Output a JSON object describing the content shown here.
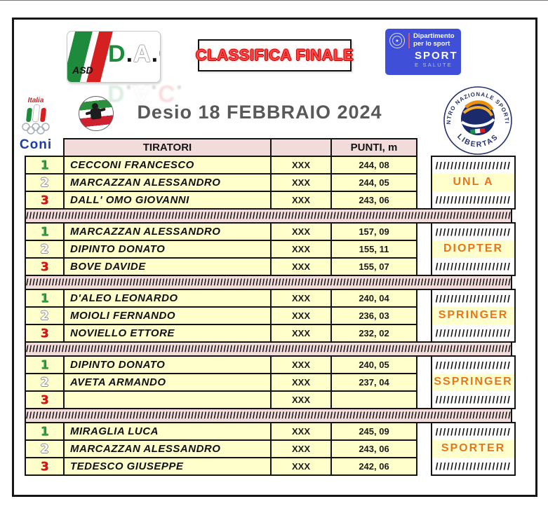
{
  "title": "Desio 18 FEBBRAIO 2024",
  "logos": {
    "dac": {
      "asd": "ASD",
      "d": "D",
      "a": "A",
      "c": "C",
      "dot": "."
    },
    "classifica_finale": "CLASSIFICA FINALE",
    "sport_salute": {
      "dept_line1": "Dipartimento",
      "dept_line2": "per lo sport",
      "main": "SPORT",
      "sub": "E SALUTE",
      "star": "★"
    },
    "coni": {
      "italia": "Italia",
      "name": "Coni"
    },
    "libertas": {
      "arc_top": "CENTRO NAZIONALE SPORTIVO",
      "arc_bottom": "LIBERTAS"
    }
  },
  "table": {
    "header": {
      "tiratori": "TIRATORI",
      "punti": "PUNTI, m"
    },
    "hatch_block": "////////////////////",
    "hatch_separator": "////////////////////////////////////////////////////////////////////////////////////////////////////////////////////////////////////////////////////////////",
    "groups": [
      {
        "category": "UNL A",
        "rows": [
          {
            "rank": "1",
            "name": "CECCONI FRANCESCO",
            "attempts": "XXX",
            "points": "244, 08"
          },
          {
            "rank": "2",
            "name": "MARCAZZAN ALESSANDRO",
            "attempts": "XXX",
            "points": "244, 05"
          },
          {
            "rank": "3",
            "name": "DALL' OMO GIOVANNI",
            "attempts": "XXX",
            "points": "243, 06"
          }
        ]
      },
      {
        "category": "DIOPTER",
        "rows": [
          {
            "rank": "1",
            "name": "MARCAZZAN ALESSANDRO",
            "attempts": "XXX",
            "points": "157, 09"
          },
          {
            "rank": "2",
            "name": "DIPINTO DONATO",
            "attempts": "XXX",
            "points": "155, 11"
          },
          {
            "rank": "3",
            "name": "BOVE DAVIDE",
            "attempts": "XXX",
            "points": "155, 07"
          }
        ]
      },
      {
        "category": "SPRINGER",
        "rows": [
          {
            "rank": "1",
            "name": "D'ALEO LEONARDO",
            "attempts": "XXX",
            "points": "240, 04"
          },
          {
            "rank": "2",
            "name": "MOIOLI FERNANDO",
            "attempts": "XXX",
            "points": "236, 03"
          },
          {
            "rank": "3",
            "name": "NOVIELLO ETTORE",
            "attempts": "XXX",
            "points": "232, 02"
          }
        ]
      },
      {
        "category": "SSPRINGER",
        "rows": [
          {
            "rank": "1",
            "name": "DIPINTO DONATO",
            "attempts": "XXX",
            "points": "240, 05"
          },
          {
            "rank": "2",
            "name": "AVETA ARMANDO",
            "attempts": "XXX",
            "points": "237, 04"
          },
          {
            "rank": "3",
            "name": "",
            "attempts": "XXX",
            "points": ""
          }
        ]
      },
      {
        "category": "SPORTER",
        "rows": [
          {
            "rank": "1",
            "name": "MIRAGLIA LUCA",
            "attempts": "XXX",
            "points": "245, 09"
          },
          {
            "rank": "2",
            "name": "MARCAZZAN ALESSANDRO",
            "attempts": "XXX",
            "points": "243, 06"
          },
          {
            "rank": "3",
            "name": "TEDESCO GIUSEPPE",
            "attempts": "XXX",
            "points": "242, 06"
          }
        ]
      }
    ]
  },
  "colors": {
    "row_bg": "#ffffcc",
    "header_bg": "#f2dcdb",
    "separator_bg": "#f2dcdb",
    "category_text": "#e8770f",
    "rank1_green": "#2f9e41",
    "rank2_silver": "#fcfcfc",
    "rank3_red": "#e01616",
    "title_gray": "#595959",
    "classifica_red": "#ff4343",
    "sport_salute_blue": "#3f4fd8",
    "libertas_navy": "#25316e",
    "libertas_orange": "#f6a21a",
    "coni_blue": "#1c3ca8",
    "dac_green": "#1e8a3c",
    "dac_red": "#d42020"
  }
}
